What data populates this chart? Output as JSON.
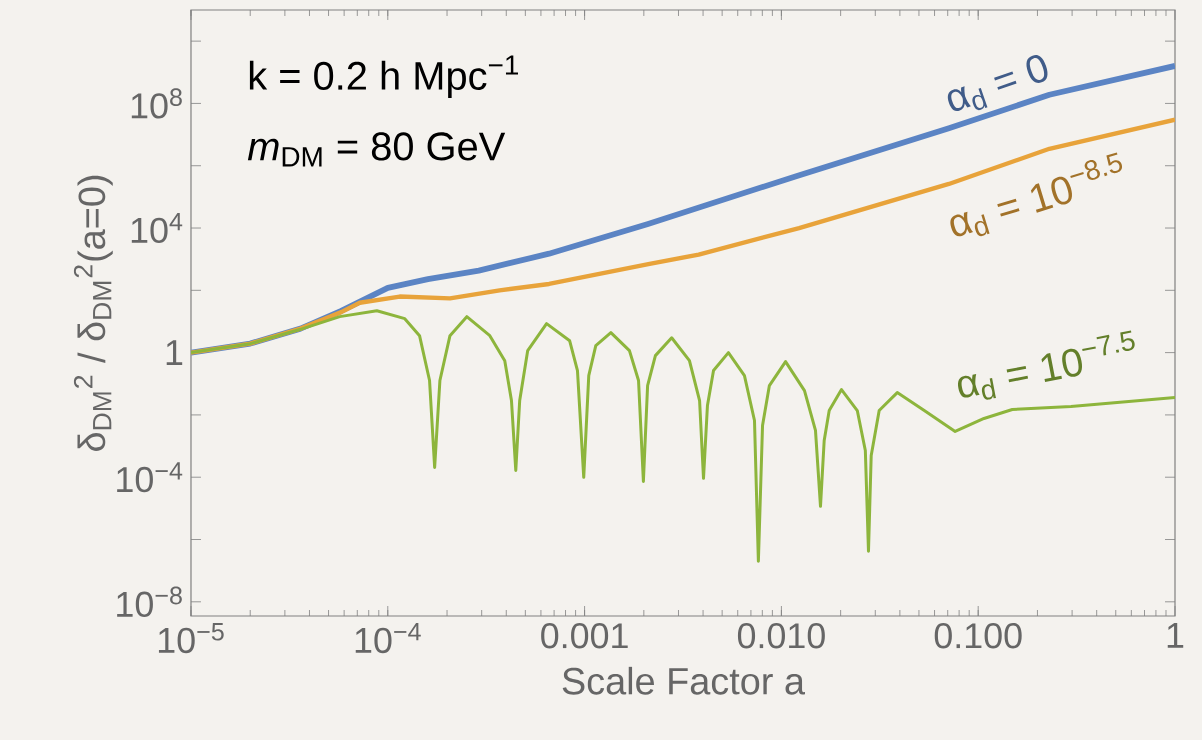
{
  "chart_data": {
    "type": "line",
    "xlabel": "Scale Factor a",
    "ylabel": "δ$_{DM}$$^{2}$ / δ$_{DM}$$^{2}$(a=0)",
    "log": "xy",
    "xlim": [
      1e-05,
      1
    ],
    "ylim": [
      3.5e-09,
      100000000000.0
    ],
    "xticks": [
      {
        "value": 1e-05,
        "label": "10$^{−5}$"
      },
      {
        "value": 0.0001,
        "label": "10$^{−4}$"
      },
      0.001,
      {
        "value": 0.01,
        "label": "0.010"
      },
      {
        "value": 0.1,
        "label": "0.100"
      },
      1
    ],
    "yticks": [
      {
        "value": 1e-08,
        "label": "10$^{−8}$"
      },
      {
        "value": 1e-06,
        "label": null
      },
      {
        "value": 0.0001,
        "label": "10$^{−4}$"
      },
      {
        "value": 0.01,
        "label": null
      },
      1,
      {
        "value": 100,
        "label": null
      },
      {
        "value": 10000,
        "label": "10$^{4}$"
      },
      {
        "value": 1000000,
        "label": null
      },
      {
        "value": 100000000,
        "label": "10$^{8}$"
      },
      {
        "value": 10000000000,
        "label": null
      }
    ],
    "annotations": [
      "k = 0.2 h Mpc$^{−1}$",
      "*m*$_{DM}$ = 80 GeV"
    ],
    "series": [
      {
        "name": "α$_{d}$ = 0",
        "color": "#5b84c4",
        "x": [
          1e-05,
          2e-05,
          3.6e-05,
          5.8e-05,
          0.0001,
          0.00016,
          0.00029,
          0.00066,
          0.0021,
          0.012,
          0.071,
          0.23,
          1
        ],
        "values": [
          1,
          1.95,
          5.9,
          22,
          120,
          230,
          430,
          1500,
          13500,
          470000,
          16000000,
          190000000,
          1600000000
        ]
      },
      {
        "name": "α$_{d}$ = 10$^{−8.5}$",
        "color": "#e8a33a",
        "x": [
          1e-05,
          2e-05,
          3.6e-05,
          5.8e-05,
          7.2e-05,
          0.000115,
          0.000207,
          0.00037,
          0.00066,
          0.00214,
          0.0038,
          0.0123,
          0.071,
          0.23,
          1
        ],
        "values": [
          1,
          1.95,
          5.9,
          20,
          40,
          63,
          55,
          100,
          160,
          710,
          1400,
          10000,
          260000,
          3500000,
          30000000
        ]
      },
      {
        "name": "α$_{d}$ = 10$^{−7.5}$",
        "color": "#8db53c",
        "x": [
          1e-05,
          2e-05,
          3.57e-05,
          5.7e-05,
          8.8e-05,
          0.000122,
          0.000145,
          0.000163,
          0.000173,
          0.000184,
          0.000207,
          0.000252,
          0.00033,
          0.000393,
          0.000425,
          0.000447,
          0.000468,
          0.000514,
          0.000641,
          0.00084,
          0.00092,
          0.00099,
          0.00105,
          0.00114,
          0.00136,
          0.00169,
          0.00188,
          0.00199,
          0.00209,
          0.00229,
          0.00277,
          0.00341,
          0.00384,
          0.00402,
          0.00421,
          0.00452,
          0.00538,
          0.00649,
          0.0073,
          0.00764,
          0.00802,
          0.00869,
          0.0105,
          0.0131,
          0.0149,
          0.0158,
          0.0165,
          0.0175,
          0.0202,
          0.0243,
          0.0267,
          0.0277,
          0.0286,
          0.0314,
          0.0388,
          0.0532,
          0.0764,
          0.107,
          0.149,
          0.296,
          1
        ],
        "values": [
          1,
          1.94,
          5.5,
          14.3,
          22,
          12.3,
          3.5,
          0.127,
          0.000206,
          0.127,
          3.5,
          14.3,
          3.5,
          0.55,
          0.029,
          0.000165,
          0.029,
          1.16,
          8.5,
          2.4,
          0.265,
          9.9e-05,
          0.183,
          1.68,
          4.4,
          1.16,
          0.127,
          7.3e-05,
          0.0875,
          0.8,
          3,
          0.55,
          0.029,
          9.2e-05,
          0.02,
          0.265,
          1,
          0.183,
          0.0066,
          2e-07,
          0.0046,
          0.0875,
          0.515,
          0.0605,
          0.0032,
          1.16e-05,
          0.00151,
          0.0138,
          0.065,
          0.0138,
          0.00072,
          4.2e-07,
          0.0005,
          0.0138,
          0.052,
          0.0138,
          0.00294,
          0.0077,
          0.0149,
          0.0186,
          0.036
        ]
      }
    ]
  }
}
